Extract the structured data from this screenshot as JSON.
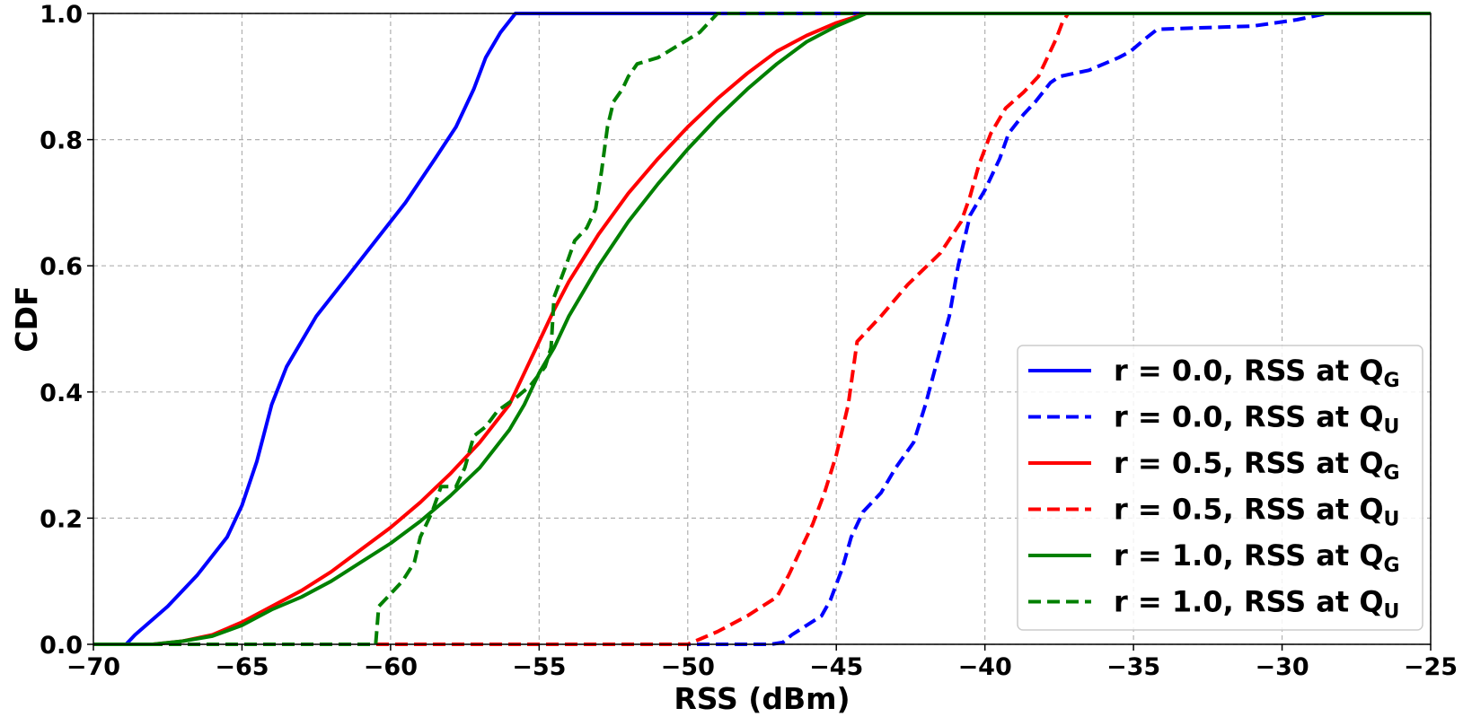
{
  "chart_data": {
    "type": "line",
    "xlabel": "RSS (dBm)",
    "ylabel": "CDF",
    "xlim": [
      -70,
      -25
    ],
    "ylim": [
      0.0,
      1.0
    ],
    "x_ticks": [
      -70,
      -65,
      -60,
      -55,
      -50,
      -45,
      -40,
      -35,
      -30,
      -25
    ],
    "x_tick_labels": [
      "−70",
      "−65",
      "−60",
      "−55",
      "−50",
      "−45",
      "−40",
      "−35",
      "−30",
      "−25"
    ],
    "y_ticks": [
      0.0,
      0.2,
      0.4,
      0.6,
      0.8,
      1.0
    ],
    "y_tick_labels": [
      "0.0",
      "0.2",
      "0.4",
      "0.6",
      "0.8",
      "1.0"
    ],
    "grid": true,
    "legend_position": "bottom-right",
    "series": [
      {
        "legend": {
          "prefix": "r = 0.0, RSS at Q",
          "sub": "G"
        },
        "color": "#0000ff",
        "dash": "solid",
        "points": [
          [
            -70,
            0
          ],
          [
            -68.9,
            0
          ],
          [
            -68.6,
            0.015
          ],
          [
            -67.5,
            0.06
          ],
          [
            -66.5,
            0.11
          ],
          [
            -65.5,
            0.17
          ],
          [
            -65,
            0.22
          ],
          [
            -64.5,
            0.29
          ],
          [
            -64,
            0.38
          ],
          [
            -63.5,
            0.44
          ],
          [
            -63,
            0.48
          ],
          [
            -62.5,
            0.52
          ],
          [
            -61.5,
            0.58
          ],
          [
            -60.5,
            0.64
          ],
          [
            -59.5,
            0.7
          ],
          [
            -58.5,
            0.77
          ],
          [
            -57.8,
            0.82
          ],
          [
            -57.2,
            0.88
          ],
          [
            -56.8,
            0.93
          ],
          [
            -56.3,
            0.97
          ],
          [
            -55.8,
            1.0
          ],
          [
            -25,
            1.0
          ]
        ]
      },
      {
        "legend": {
          "prefix": "r = 0.0, RSS at Q",
          "sub": "U"
        },
        "color": "#0000ff",
        "dash": "dashed",
        "points": [
          [
            -70,
            0
          ],
          [
            -47.2,
            0
          ],
          [
            -46.8,
            0.003
          ],
          [
            -46.5,
            0.015
          ],
          [
            -46,
            0.03
          ],
          [
            -45.5,
            0.045
          ],
          [
            -45.2,
            0.07
          ],
          [
            -44.8,
            0.12
          ],
          [
            -44.5,
            0.17
          ],
          [
            -44.1,
            0.21
          ],
          [
            -43.5,
            0.24
          ],
          [
            -43,
            0.28
          ],
          [
            -42.4,
            0.32
          ],
          [
            -42,
            0.38
          ],
          [
            -41.6,
            0.45
          ],
          [
            -41.2,
            0.52
          ],
          [
            -40.9,
            0.6
          ],
          [
            -40.5,
            0.68
          ],
          [
            -40,
            0.72
          ],
          [
            -39.5,
            0.77
          ],
          [
            -39.2,
            0.81
          ],
          [
            -38.7,
            0.84
          ],
          [
            -38.3,
            0.86
          ],
          [
            -37.8,
            0.89
          ],
          [
            -37.5,
            0.9
          ],
          [
            -37,
            0.905
          ],
          [
            -36.5,
            0.91
          ],
          [
            -35.5,
            0.93
          ],
          [
            -35.1,
            0.94
          ],
          [
            -34.6,
            0.96
          ],
          [
            -34.2,
            0.975
          ],
          [
            -31,
            0.98
          ],
          [
            -29.5,
            0.99
          ],
          [
            -28.5,
            1.0
          ],
          [
            -25,
            1.0
          ]
        ]
      },
      {
        "legend": {
          "prefix": "r = 0.5, RSS at Q",
          "sub": "G"
        },
        "color": "#ff0000",
        "dash": "solid",
        "points": [
          [
            -70,
            0
          ],
          [
            -68,
            0
          ],
          [
            -67,
            0.005
          ],
          [
            -66,
            0.015
          ],
          [
            -65,
            0.035
          ],
          [
            -64,
            0.06
          ],
          [
            -63,
            0.085
          ],
          [
            -62,
            0.115
          ],
          [
            -61,
            0.15
          ],
          [
            -60,
            0.185
          ],
          [
            -59,
            0.225
          ],
          [
            -58,
            0.27
          ],
          [
            -57,
            0.32
          ],
          [
            -56,
            0.38
          ],
          [
            -55.5,
            0.43
          ],
          [
            -55,
            0.48
          ],
          [
            -54.5,
            0.53
          ],
          [
            -54,
            0.575
          ],
          [
            -53,
            0.65
          ],
          [
            -52,
            0.715
          ],
          [
            -51,
            0.77
          ],
          [
            -50,
            0.82
          ],
          [
            -49,
            0.865
          ],
          [
            -48,
            0.905
          ],
          [
            -47,
            0.94
          ],
          [
            -46,
            0.965
          ],
          [
            -45,
            0.985
          ],
          [
            -44,
            1.0
          ],
          [
            -25,
            1.0
          ]
        ]
      },
      {
        "legend": {
          "prefix": "r = 0.5, RSS at Q",
          "sub": "U"
        },
        "color": "#ff0000",
        "dash": "dashed",
        "points": [
          [
            -70,
            0
          ],
          [
            -50,
            0
          ],
          [
            -49,
            0.02
          ],
          [
            -48,
            0.045
          ],
          [
            -47,
            0.075
          ],
          [
            -46.6,
            0.11
          ],
          [
            -46.2,
            0.15
          ],
          [
            -45.8,
            0.19
          ],
          [
            -45.4,
            0.24
          ],
          [
            -45,
            0.3
          ],
          [
            -44.6,
            0.38
          ],
          [
            -44.3,
            0.48
          ],
          [
            -43.5,
            0.52
          ],
          [
            -42.6,
            0.57
          ],
          [
            -41.5,
            0.62
          ],
          [
            -40.8,
            0.67
          ],
          [
            -40.5,
            0.71
          ],
          [
            -40.2,
            0.76
          ],
          [
            -39.8,
            0.81
          ],
          [
            -39.3,
            0.85
          ],
          [
            -38.7,
            0.875
          ],
          [
            -38.2,
            0.9
          ],
          [
            -37.9,
            0.93
          ],
          [
            -37.6,
            0.96
          ],
          [
            -37.4,
            0.985
          ],
          [
            -37.2,
            1.0
          ],
          [
            -25,
            1.0
          ]
        ]
      },
      {
        "legend": {
          "prefix": "r = 1.0, RSS at Q",
          "sub": "G"
        },
        "color": "#008000",
        "dash": "solid",
        "points": [
          [
            -70,
            0
          ],
          [
            -68,
            0
          ],
          [
            -67,
            0.005
          ],
          [
            -66,
            0.013
          ],
          [
            -65,
            0.03
          ],
          [
            -64,
            0.055
          ],
          [
            -63,
            0.075
          ],
          [
            -62,
            0.1
          ],
          [
            -61,
            0.13
          ],
          [
            -60,
            0.16
          ],
          [
            -59,
            0.195
          ],
          [
            -58,
            0.235
          ],
          [
            -57,
            0.28
          ],
          [
            -56,
            0.34
          ],
          [
            -55.5,
            0.38
          ],
          [
            -55,
            0.43
          ],
          [
            -54.5,
            0.47
          ],
          [
            -54,
            0.52
          ],
          [
            -53,
            0.6
          ],
          [
            -52,
            0.67
          ],
          [
            -51,
            0.73
          ],
          [
            -50,
            0.785
          ],
          [
            -49,
            0.835
          ],
          [
            -48,
            0.88
          ],
          [
            -47,
            0.92
          ],
          [
            -46,
            0.955
          ],
          [
            -45,
            0.98
          ],
          [
            -44,
            1.0
          ],
          [
            -25,
            1.0
          ]
        ]
      },
      {
        "legend": {
          "prefix": "r = 1.0, RSS at Q",
          "sub": "U"
        },
        "color": "#008000",
        "dash": "dashed",
        "points": [
          [
            -70,
            0
          ],
          [
            -60.5,
            0
          ],
          [
            -60.4,
            0.06
          ],
          [
            -60,
            0.08
          ],
          [
            -59.6,
            0.1
          ],
          [
            -59.2,
            0.13
          ],
          [
            -59,
            0.17
          ],
          [
            -58.6,
            0.21
          ],
          [
            -58.3,
            0.25
          ],
          [
            -57.8,
            0.25
          ],
          [
            -57.5,
            0.28
          ],
          [
            -57.2,
            0.33
          ],
          [
            -56.8,
            0.345
          ],
          [
            -56.4,
            0.37
          ],
          [
            -55.8,
            0.39
          ],
          [
            -55.3,
            0.41
          ],
          [
            -54.8,
            0.44
          ],
          [
            -54.6,
            0.47
          ],
          [
            -54.5,
            0.55
          ],
          [
            -54.1,
            0.6
          ],
          [
            -53.8,
            0.64
          ],
          [
            -53.4,
            0.66
          ],
          [
            -53.1,
            0.69
          ],
          [
            -52.9,
            0.75
          ],
          [
            -52.7,
            0.82
          ],
          [
            -52.5,
            0.86
          ],
          [
            -52.2,
            0.88
          ],
          [
            -52,
            0.9
          ],
          [
            -51.7,
            0.92
          ],
          [
            -51,
            0.93
          ],
          [
            -50.3,
            0.95
          ],
          [
            -49.6,
            0.97
          ],
          [
            -49.3,
            0.985
          ],
          [
            -49,
            1.0
          ],
          [
            -25,
            1.0
          ]
        ]
      }
    ]
  }
}
